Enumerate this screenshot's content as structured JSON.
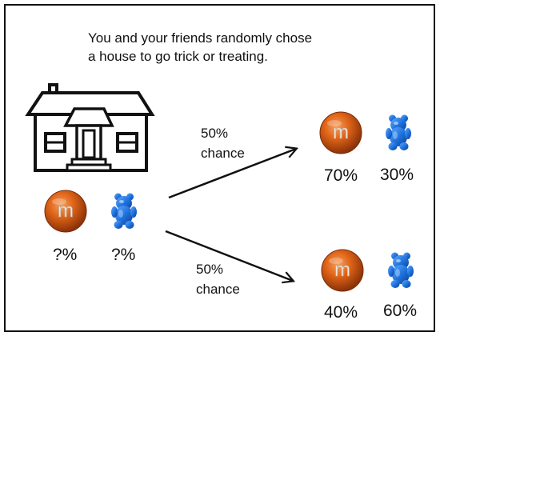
{
  "intro": {
    "line1": "You and your friends randomly chose",
    "line2": "a house to go trick or treating."
  },
  "unknown": {
    "chocolate_pct": "?%",
    "gummy_pct": "?%"
  },
  "branches": [
    {
      "chance_value": "50%",
      "chance_word": "chance",
      "chocolate_pct": "70%",
      "gummy_pct": "30%"
    },
    {
      "chance_value": "50%",
      "chance_word": "chance",
      "chocolate_pct": "40%",
      "gummy_pct": "60%"
    }
  ],
  "icons": {
    "house": "house-icon",
    "chocolate": "chocolate-candy-icon",
    "gummy": "gummy-bear-icon",
    "candy_letter": "m"
  },
  "colors": {
    "chocolate": "#d9571a",
    "gummy": "#1d6fd9",
    "line": "#111111"
  }
}
